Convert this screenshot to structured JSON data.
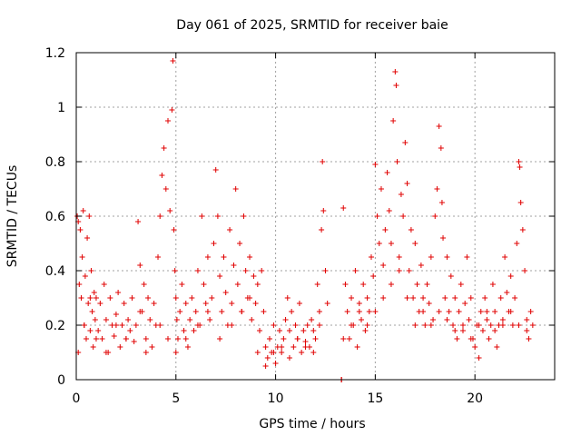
{
  "chart_data": {
    "type": "scatter",
    "title": "Day 061 of 2025, SRMTID for receiver baie",
    "xlabel": "GPS time / hours",
    "ylabel": "SRMTID / TECUs",
    "xlim": [
      0,
      24
    ],
    "ylim": [
      0,
      1.2
    ],
    "xticks": [
      0,
      5,
      10,
      15,
      20
    ],
    "xtick_labels": [
      "0",
      "5",
      "10",
      "15",
      "20"
    ],
    "yticks": [
      0,
      0.2,
      0.4,
      0.6,
      0.8,
      1,
      1.2
    ],
    "ytick_labels": [
      "0",
      "0.2",
      "0.4",
      "0.6",
      "0.8",
      "1",
      "1.2"
    ],
    "grid": true,
    "marker": "+",
    "color": "#e00000",
    "series": [
      {
        "name": "SRMTID",
        "x": [
          0.05,
          0.1,
          0.15,
          0.2,
          0.25,
          0.3,
          0.35,
          0.4,
          0.45,
          0.5,
          0.55,
          0.6,
          0.65,
          0.7,
          0.75,
          0.8,
          0.85,
          0.9,
          0.95,
          1.0,
          1.1,
          1.2,
          1.3,
          1.4,
          1.5,
          1.6,
          1.7,
          1.8,
          1.9,
          2.0,
          2.1,
          2.2,
          2.3,
          2.4,
          2.5,
          2.6,
          2.7,
          2.8,
          2.9,
          3.0,
          3.1,
          3.2,
          3.3,
          3.4,
          3.5,
          3.6,
          3.7,
          3.8,
          3.9,
          4.0,
          4.1,
          4.2,
          4.3,
          4.4,
          4.5,
          4.6,
          4.7,
          4.8,
          4.85,
          4.9,
          4.95,
          5.0,
          5.05,
          5.1,
          5.2,
          5.3,
          5.4,
          5.5,
          5.6,
          5.7,
          5.8,
          5.9,
          6.0,
          6.1,
          6.2,
          6.3,
          6.4,
          6.5,
          6.6,
          6.7,
          6.8,
          6.9,
          7.0,
          7.1,
          7.2,
          7.3,
          7.4,
          7.5,
          7.6,
          7.7,
          7.8,
          7.9,
          8.0,
          8.1,
          8.2,
          8.3,
          8.4,
          8.5,
          8.6,
          8.7,
          8.8,
          8.9,
          9.0,
          9.1,
          9.2,
          9.3,
          9.4,
          9.5,
          9.6,
          9.7,
          9.8,
          9.9,
          10.0,
          10.1,
          10.2,
          10.3,
          10.4,
          10.5,
          10.6,
          10.7,
          10.8,
          10.9,
          11.0,
          11.1,
          11.2,
          11.3,
          11.4,
          11.5,
          11.6,
          11.7,
          11.8,
          11.9,
          12.0,
          12.1,
          12.2,
          12.3,
          12.35,
          12.4,
          12.5,
          12.6,
          13.3,
          13.4,
          13.5,
          13.6,
          13.7,
          13.8,
          13.9,
          14.0,
          14.1,
          14.2,
          14.3,
          14.4,
          14.5,
          14.6,
          14.7,
          14.8,
          14.9,
          15.0,
          15.1,
          15.2,
          15.3,
          15.4,
          15.5,
          15.6,
          15.7,
          15.8,
          15.9,
          16.0,
          16.05,
          16.1,
          16.2,
          16.3,
          16.4,
          16.5,
          16.6,
          16.7,
          16.8,
          16.9,
          17.0,
          17.1,
          17.2,
          17.3,
          17.4,
          17.5,
          17.6,
          17.7,
          17.8,
          17.9,
          18.0,
          18.1,
          18.2,
          18.3,
          18.35,
          18.4,
          18.5,
          18.6,
          18.7,
          18.8,
          18.9,
          19.0,
          19.1,
          19.2,
          19.3,
          19.4,
          19.5,
          19.6,
          19.7,
          19.8,
          19.9,
          20.0,
          20.1,
          20.2,
          20.3,
          20.4,
          20.5,
          20.6,
          20.7,
          20.8,
          20.9,
          21.0,
          21.1,
          21.2,
          21.3,
          21.4,
          21.5,
          21.6,
          21.7,
          21.8,
          21.9,
          22.0,
          22.1,
          22.2,
          22.25,
          22.3,
          22.4,
          22.5,
          22.6,
          22.7,
          22.8,
          22.9,
          0.1,
          0.4,
          0.7,
          1.0,
          1.5,
          2.0,
          2.5,
          3.2,
          3.5,
          4.2,
          4.6,
          5.0,
          5.5,
          6.1,
          6.6,
          7.2,
          7.8,
          8.3,
          8.7,
          9.1,
          9.5,
          9.9,
          10.3,
          10.7,
          11.1,
          11.5,
          11.9,
          12.2,
          13.4,
          13.8,
          14.2,
          14.6,
          15.0,
          15.4,
          15.8,
          16.2,
          16.6,
          17.0,
          17.4,
          17.8,
          18.2,
          18.6,
          19.0,
          19.4,
          19.8,
          20.2,
          20.6,
          21.0,
          21.4,
          21.8,
          22.2,
          22.6,
          13.3,
          13.31
        ],
        "y": [
          0.6,
          0.58,
          0.35,
          0.55,
          0.3,
          0.45,
          0.62,
          0.2,
          0.38,
          0.15,
          0.52,
          0.28,
          0.6,
          0.18,
          0.4,
          0.25,
          0.12,
          0.32,
          0.22,
          0.3,
          0.18,
          0.28,
          0.15,
          0.35,
          0.22,
          0.1,
          0.3,
          0.2,
          0.16,
          0.24,
          0.32,
          0.12,
          0.2,
          0.28,
          0.15,
          0.22,
          0.18,
          0.3,
          0.14,
          0.2,
          0.58,
          0.42,
          0.25,
          0.35,
          0.15,
          0.3,
          0.22,
          0.12,
          0.28,
          0.2,
          0.45,
          0.6,
          0.75,
          0.85,
          0.7,
          0.95,
          0.62,
          0.99,
          1.17,
          0.55,
          0.4,
          0.3,
          0.22,
          0.15,
          0.25,
          0.35,
          0.18,
          0.28,
          0.12,
          0.22,
          0.3,
          0.18,
          0.25,
          0.4,
          0.2,
          0.6,
          0.35,
          0.28,
          0.45,
          0.22,
          0.3,
          0.5,
          0.77,
          0.6,
          0.38,
          0.25,
          0.45,
          0.32,
          0.2,
          0.55,
          0.28,
          0.42,
          0.7,
          0.35,
          0.5,
          0.25,
          0.6,
          0.4,
          0.3,
          0.45,
          0.22,
          0.38,
          0.28,
          0.35,
          0.18,
          0.4,
          0.25,
          0.12,
          0.08,
          0.15,
          0.1,
          0.2,
          0.06,
          0.12,
          0.18,
          0.1,
          0.15,
          0.22,
          0.3,
          0.18,
          0.25,
          0.12,
          0.2,
          0.15,
          0.28,
          0.1,
          0.18,
          0.14,
          0.2,
          0.12,
          0.22,
          0.18,
          0.15,
          0.35,
          0.25,
          0.55,
          0.8,
          0.62,
          0.4,
          0.28,
          0.0,
          0.63,
          0.35,
          0.25,
          0.15,
          0.3,
          0.2,
          0.4,
          0.12,
          0.28,
          0.22,
          0.35,
          0.18,
          0.3,
          0.25,
          0.45,
          0.38,
          0.79,
          0.6,
          0.5,
          0.7,
          0.42,
          0.55,
          0.76,
          0.62,
          0.5,
          0.95,
          1.13,
          1.08,
          0.8,
          0.45,
          0.68,
          0.6,
          0.87,
          0.72,
          0.4,
          0.55,
          0.3,
          0.5,
          0.35,
          0.25,
          0.42,
          0.3,
          0.2,
          0.35,
          0.28,
          0.45,
          0.22,
          0.6,
          0.7,
          0.93,
          0.85,
          0.65,
          0.52,
          0.3,
          0.45,
          0.25,
          0.38,
          0.2,
          0.3,
          0.15,
          0.25,
          0.35,
          0.18,
          0.28,
          0.45,
          0.22,
          0.3,
          0.15,
          0.12,
          0.2,
          0.08,
          0.25,
          0.18,
          0.3,
          0.22,
          0.15,
          0.2,
          0.35,
          0.25,
          0.12,
          0.2,
          0.3,
          0.22,
          0.45,
          0.32,
          0.25,
          0.38,
          0.2,
          0.3,
          0.5,
          0.8,
          0.78,
          0.65,
          0.55,
          0.4,
          0.22,
          0.15,
          0.25,
          0.2,
          0.1,
          0.2,
          0.3,
          0.15,
          0.1,
          0.2,
          0.15,
          0.25,
          0.1,
          0.2,
          0.15,
          0.1,
          0.15,
          0.2,
          0.25,
          0.15,
          0.2,
          0.25,
          0.3,
          0.1,
          0.05,
          0.1,
          0.12,
          0.08,
          0.15,
          0.12,
          0.1,
          0.2,
          0.15,
          0.2,
          0.25,
          0.2,
          0.25,
          0.3,
          0.35,
          0.4,
          0.3,
          0.2,
          0.25,
          0.2,
          0.25,
          0.22,
          0.18,
          0.2,
          0.15,
          0.2,
          0.25,
          0.18,
          0.2,
          0.25,
          0.2,
          0.18,
          0.0,
          0.0
        ]
      }
    ]
  }
}
